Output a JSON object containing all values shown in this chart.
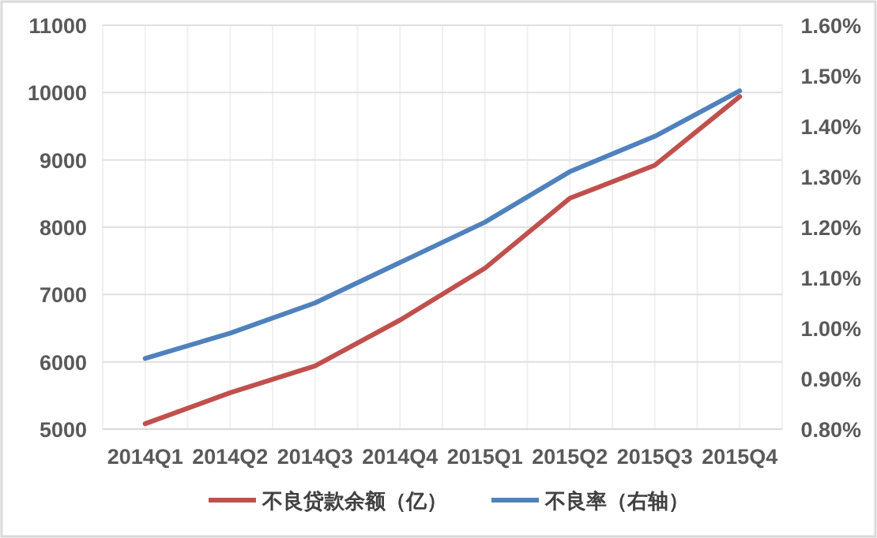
{
  "chart_data": {
    "type": "line",
    "categories": [
      "2014Q1",
      "2014Q2",
      "2014Q3",
      "2014Q4",
      "2015Q1",
      "2015Q2",
      "2015Q3",
      "2015Q4"
    ],
    "series": [
      {
        "name": "不良贷款余额（亿）",
        "color": "#c0504d",
        "values": [
          5080,
          5540,
          5940,
          6620,
          7390,
          8430,
          8920,
          9940
        ]
      },
      {
        "name": "不良率（右轴）",
        "color": "#4f81bd",
        "axis": "y2",
        "values": [
          0.94,
          0.99,
          1.05,
          1.13,
          1.21,
          1.31,
          1.38,
          1.47
        ]
      }
    ],
    "ylim": [
      5000,
      11000
    ],
    "yticks": [
      5000,
      6000,
      7000,
      8000,
      9000,
      10000,
      11000
    ],
    "y2lim": [
      0.8,
      1.6
    ],
    "y2ticks": [
      {
        "value": 0.8,
        "label": "0.80%"
      },
      {
        "value": 0.9,
        "label": "0.90%"
      },
      {
        "value": 1.0,
        "label": "1.00%"
      },
      {
        "value": 1.1,
        "label": "1.10%"
      },
      {
        "value": 1.2,
        "label": "1.20%"
      },
      {
        "value": 1.3,
        "label": "1.30%"
      },
      {
        "value": 1.4,
        "label": "1.40%"
      },
      {
        "value": 1.5,
        "label": "1.50%"
      },
      {
        "value": 1.6,
        "label": "1.60%"
      }
    ],
    "grid": true,
    "legend": "bottom",
    "marker": "none",
    "line_style": "solid"
  }
}
